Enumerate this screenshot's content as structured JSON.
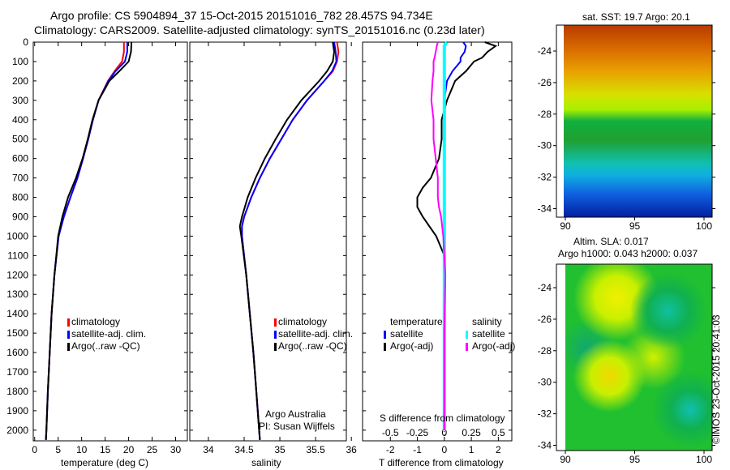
{
  "title_line1": "Argo profile: CS 5904894_37 15-Oct-2015 20151016_782 28.457S 94.734E",
  "title_line2": "Climatology: CARS2009. Satellite-adjusted climatology: synTS_20151016.nc (0.23d later)",
  "chart_data": [
    {
      "type": "line",
      "name": "temperature",
      "xlabel": "temperature (deg C)",
      "xlim": [
        -0.3,
        32.5
      ],
      "ylim": [
        0,
        2055
      ],
      "xticks": [
        0,
        5,
        10,
        15,
        20,
        25,
        30
      ],
      "yticks": [
        0,
        100,
        200,
        300,
        400,
        500,
        600,
        700,
        800,
        900,
        1000,
        1100,
        1200,
        1300,
        1400,
        1500,
        1600,
        1700,
        1800,
        1900,
        2000
      ],
      "depth": [
        0,
        50,
        100,
        150,
        200,
        300,
        400,
        500,
        600,
        700,
        800,
        900,
        1000,
        1200,
        1400,
        1600,
        1800,
        2000,
        2050
      ],
      "series": [
        {
          "name": "climatology",
          "color": "#ff0000",
          "values": [
            19,
            19,
            18.6,
            17,
            15.6,
            13.6,
            12.4,
            11.4,
            10.3,
            9.1,
            7.6,
            6.2,
            5.1,
            4.2,
            3.6,
            3.2,
            2.8,
            2.5,
            2.4
          ]
        },
        {
          "name": "satellite-adj. clim.",
          "color": "#0000ff",
          "values": [
            19.7,
            19.7,
            19.2,
            17.2,
            15.7,
            13.6,
            12.4,
            11.4,
            10.3,
            9.1,
            7.6,
            6.2,
            5.1,
            4.2,
            3.6,
            3.2,
            2.8,
            2.5,
            2.4
          ]
        },
        {
          "name": "Argo(..raw -QC)",
          "color": "#000000",
          "values": [
            20.6,
            20.5,
            20,
            18,
            15.9,
            13.6,
            12.3,
            11.3,
            10.2,
            8.8,
            7.1,
            5.9,
            5,
            4.2,
            3.6,
            3.2,
            2.8,
            2.5,
            2.4
          ]
        }
      ]
    },
    {
      "type": "line",
      "name": "salinity",
      "xlabel": "salinity",
      "xlim": [
        33.74,
        35.93
      ],
      "ylim": [
        0,
        2055
      ],
      "xticks": [
        34,
        34.5,
        35,
        35.5,
        36
      ],
      "depth": [
        0,
        50,
        100,
        150,
        200,
        300,
        400,
        500,
        600,
        700,
        800,
        900,
        950,
        1000,
        1200,
        1400,
        1600,
        1800,
        2000,
        2050
      ],
      "series": [
        {
          "name": "climatology",
          "color": "#ff0000",
          "values": [
            35.8,
            35.82,
            35.8,
            35.74,
            35.62,
            35.38,
            35.18,
            35.02,
            34.86,
            34.72,
            34.6,
            34.5,
            34.47,
            34.47,
            34.53,
            34.58,
            34.63,
            34.67,
            34.71,
            34.72
          ]
        },
        {
          "name": "satellite-adj. clim.",
          "color": "#0000ff",
          "values": [
            35.76,
            35.78,
            35.79,
            35.73,
            35.62,
            35.38,
            35.18,
            35.02,
            34.86,
            34.72,
            34.6,
            34.5,
            34.47,
            34.47,
            34.53,
            34.58,
            34.63,
            34.67,
            34.71,
            34.72
          ]
        },
        {
          "name": "Argo(..raw -QC)",
          "color": "#000000",
          "values": [
            35.74,
            35.76,
            35.74,
            35.66,
            35.55,
            35.3,
            35.1,
            34.94,
            34.79,
            34.66,
            34.55,
            34.47,
            34.44,
            34.46,
            34.53,
            34.58,
            34.63,
            34.67,
            34.71,
            34.72
          ]
        }
      ]
    },
    {
      "type": "line",
      "name": "difference",
      "xlabel": "T difference from climatology",
      "x2label": "S difference from climatology",
      "xlim": [
        -3.03,
        2.5
      ],
      "ylim": [
        0,
        2055
      ],
      "xticks": [
        -2,
        -1,
        0,
        1,
        2
      ],
      "x2ticks": [
        "-0.5",
        "-0.25",
        "0",
        "0.25",
        "0.5"
      ],
      "depth": [
        0,
        20,
        50,
        80,
        100,
        150,
        200,
        300,
        400,
        500,
        600,
        700,
        750,
        800,
        850,
        900,
        1000,
        1100,
        1200,
        1500,
        2000
      ],
      "series": [
        {
          "name": "temperature satellite",
          "color": "#0000ff",
          "values": [
            0.7,
            0.8,
            0.75,
            0.6,
            0.6,
            0.3,
            0.1,
            0,
            0,
            0,
            0,
            0,
            0,
            0,
            0,
            0,
            0,
            0,
            0,
            0,
            0
          ]
        },
        {
          "name": "temperature Argo(-adj)",
          "color": "#000000",
          "values": [
            1.5,
            1.9,
            1.6,
            1.4,
            1.1,
            0.8,
            0.4,
            0.1,
            -0.1,
            -0.1,
            -0.2,
            -0.5,
            -0.8,
            -1,
            -1,
            -0.8,
            -0.3,
            0,
            0,
            0,
            0
          ]
        },
        {
          "name": "salinity satellite",
          "color": "#00ffff",
          "values": [
            0.02,
            0,
            0,
            0,
            0,
            0,
            0,
            0,
            0,
            0,
            0,
            0,
            0,
            0,
            0,
            0,
            0,
            0,
            0,
            0,
            0
          ]
        },
        {
          "name": "salinity Argo(-adj)",
          "color": "#ff00ff",
          "values": [
            -0.06,
            -0.07,
            -0.08,
            -0.09,
            -0.1,
            -0.1,
            -0.11,
            -0.12,
            -0.1,
            -0.1,
            -0.08,
            -0.06,
            -0.06,
            -0.06,
            -0.05,
            -0.03,
            -0.01,
            0,
            0.01,
            0,
            0
          ]
        }
      ]
    }
  ],
  "legend1": {
    "items": [
      "climatology",
      "satellite-adj. clim.",
      "Argo(..raw -QC)"
    ]
  },
  "legend2": {
    "items": [
      "climatology",
      "satellite-adj. clim.",
      "Argo(..raw -QC)"
    ],
    "note1": "Argo Australia",
    "note2": "PI: Susan Wijffels"
  },
  "legend3": {
    "temp_header": "temperature",
    "sal_header": "salinity",
    "temp_items": [
      "satellite",
      "Argo(-adj)"
    ],
    "sal_items": [
      "satellite",
      "Argo(-adj)"
    ]
  },
  "map1": {
    "title": "sat. SST: 19.7 Argo: 20.1",
    "xticks": [
      "90",
      "95",
      "100"
    ],
    "yticks": [
      "-24",
      "-26",
      "-28",
      "-30",
      "-32",
      "-34"
    ]
  },
  "map2": {
    "title1": "Altim. SLA: 0.017",
    "title2": "Argo h1000: 0.043 h2000: 0.037",
    "xticks": [
      "90",
      "95",
      "100"
    ],
    "yticks": [
      "-24",
      "-26",
      "-28",
      "-30",
      "-32",
      "-34"
    ]
  },
  "credit": "©IMOS 23-Oct-2015 20:41:03"
}
